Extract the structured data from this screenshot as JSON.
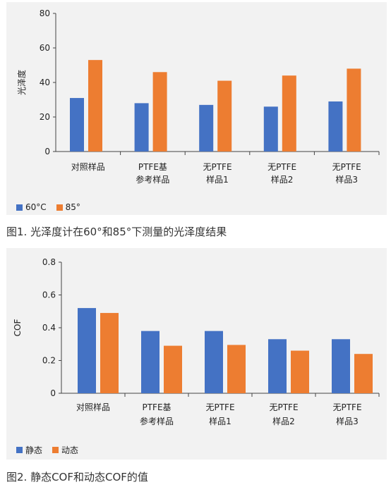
{
  "charts": [
    {
      "type": "bar",
      "ylabel": "光泽度",
      "ylim": [
        0,
        80
      ],
      "yticks": [
        0,
        20,
        40,
        60,
        80
      ],
      "categories": [
        "对照样品",
        "PTFE基\n参考样品",
        "无PTFE\n样品1",
        "无PTFE\n样品2",
        "无PTFE\n样品3"
      ],
      "series": [
        {
          "name": "60°C",
          "values": [
            31,
            28,
            27,
            26,
            29
          ],
          "color": "#4472c4"
        },
        {
          "name": "85°",
          "values": [
            53,
            46,
            41,
            44,
            48
          ],
          "color": "#ed7d31"
        }
      ],
      "caption": "图1. 光泽度计在60°和85°下测量的光泽度结果"
    },
    {
      "type": "bar",
      "ylabel": "COF",
      "ylim": [
        0,
        0.8
      ],
      "yticks": [
        "0",
        "0.2",
        "0.4",
        "0.6",
        "0.8"
      ],
      "categories": [
        "对照样品",
        "PTFE基\n参考样品",
        "无PTFE\n样品1",
        "无PTFE\n样品2",
        "无PTFE\n样品3"
      ],
      "series": [
        {
          "name": "静态",
          "values": [
            0.52,
            0.38,
            0.38,
            0.33,
            0.33
          ],
          "color": "#4472c4"
        },
        {
          "name": "动态",
          "values": [
            0.49,
            0.29,
            0.295,
            0.26,
            0.24
          ],
          "color": "#ed7d31"
        }
      ],
      "caption": "图2. 静态COF和动态COF的值"
    }
  ]
}
